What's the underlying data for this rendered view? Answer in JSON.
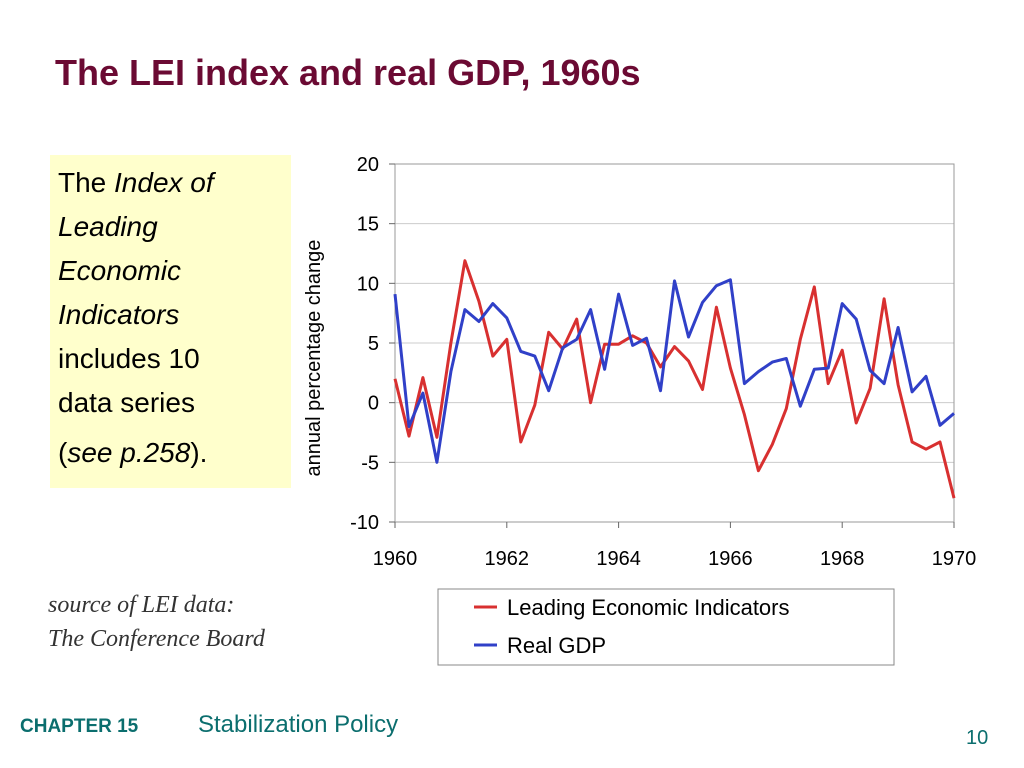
{
  "slide": {
    "title": "The LEI index and real GDP, 1960s",
    "callout": {
      "line1_plain": "The ",
      "line1_italic": "Index of",
      "line2": "Leading",
      "line3": "Economic",
      "line4": "Indicators",
      "line5": "includes 10",
      "line6": "data series",
      "line7_open": "(",
      "line7_italic": "see p.258",
      "line7_close": ")."
    },
    "source": {
      "line1": "source of LEI data:",
      "line2": "The Conference Board"
    },
    "footer": {
      "chapter": "CHAPTER 15",
      "topic": "Stabilization Policy",
      "page": "10"
    }
  },
  "chart_data": {
    "type": "line",
    "title": "",
    "xlabel": "",
    "ylabel": "annual percentage change",
    "xlim": [
      1960,
      1970
    ],
    "ylim": [
      -10,
      20
    ],
    "xticks": [
      1960,
      1962,
      1964,
      1966,
      1968,
      1970
    ],
    "yticks": [
      -10,
      -5,
      0,
      5,
      10,
      15,
      20
    ],
    "grid": "horizontal",
    "legend": "below",
    "series": [
      {
        "name": "Leading Economic Indicators",
        "color": "#d83030",
        "x": [
          1960.0,
          1960.25,
          1960.5,
          1960.75,
          1961.0,
          1961.25,
          1961.5,
          1961.75,
          1962.0,
          1962.25,
          1962.5,
          1962.75,
          1963.0,
          1963.25,
          1963.5,
          1963.75,
          1964.0,
          1964.25,
          1964.5,
          1964.75,
          1965.0,
          1965.25,
          1965.5,
          1965.75,
          1966.0,
          1966.25,
          1966.5,
          1966.75,
          1967.0,
          1967.25,
          1967.5,
          1967.75,
          1968.0,
          1968.25,
          1968.5,
          1968.75,
          1969.0,
          1969.25,
          1969.5,
          1969.75,
          1970.0
        ],
        "y": [
          2.0,
          -2.8,
          2.1,
          -2.9,
          5.0,
          11.9,
          8.5,
          3.9,
          5.3,
          -3.3,
          -0.2,
          5.9,
          4.5,
          7.0,
          0.0,
          4.9,
          4.9,
          5.6,
          5.0,
          3.0,
          4.7,
          3.5,
          1.1,
          8.0,
          2.9,
          -1.0,
          -5.7,
          -3.5,
          -0.5,
          5.3,
          9.7,
          1.6,
          4.4,
          -1.7,
          1.2,
          8.7,
          1.5,
          -3.3,
          -3.9,
          -3.3,
          -8.0
        ]
      },
      {
        "name": "Real GDP",
        "color": "#3040c8",
        "x": [
          1960.0,
          1960.25,
          1960.5,
          1960.75,
          1961.0,
          1961.25,
          1961.5,
          1961.75,
          1962.0,
          1962.25,
          1962.5,
          1962.75,
          1963.0,
          1963.25,
          1963.5,
          1963.75,
          1964.0,
          1964.25,
          1964.5,
          1964.75,
          1965.0,
          1965.25,
          1965.5,
          1965.75,
          1966.0,
          1966.25,
          1966.5,
          1966.75,
          1967.0,
          1967.25,
          1967.5,
          1967.75,
          1968.0,
          1968.25,
          1968.5,
          1968.75,
          1969.0,
          1969.25,
          1969.5,
          1969.75,
          1970.0
        ],
        "y": [
          9.1,
          -2.0,
          0.8,
          -5.0,
          2.6,
          7.8,
          6.8,
          8.3,
          7.1,
          4.3,
          3.9,
          1.0,
          4.6,
          5.3,
          7.8,
          2.8,
          9.1,
          4.8,
          5.4,
          1.0,
          10.2,
          5.5,
          8.4,
          9.8,
          10.3,
          1.6,
          2.6,
          3.4,
          3.7,
          -0.3,
          2.8,
          2.9,
          8.3,
          7.0,
          2.7,
          1.6,
          6.3,
          0.9,
          2.2,
          -1.9,
          -0.9
        ]
      }
    ]
  }
}
